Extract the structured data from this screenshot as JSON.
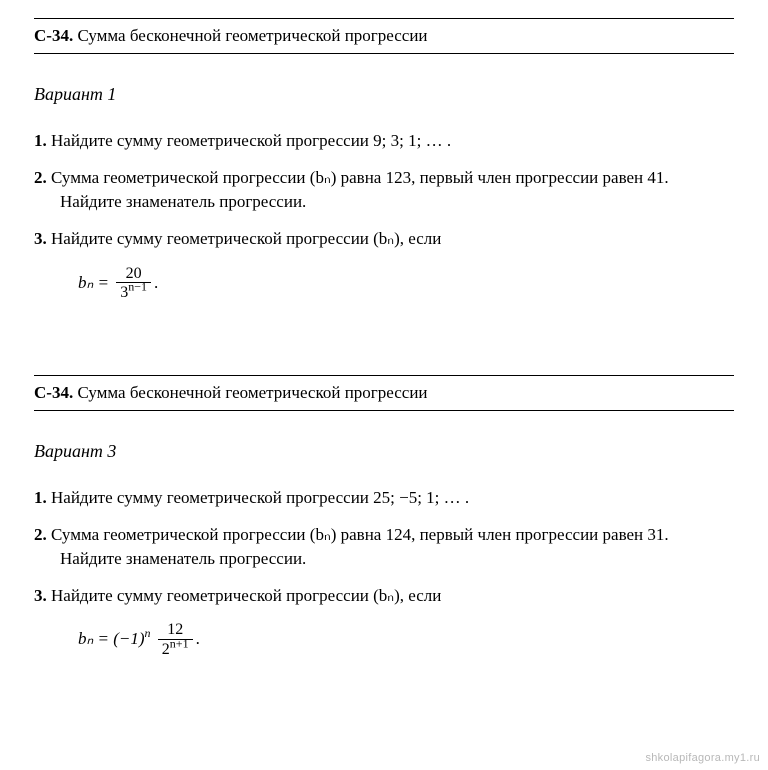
{
  "sections": [
    {
      "code": "С-34.",
      "title": "Сумма бесконечной геометрической прогрессии",
      "variant": "Вариант 1",
      "problems": {
        "p1": {
          "num": "1.",
          "text": "Найдите сумму геометрической прогрессии 9; 3; 1; … ."
        },
        "p2": {
          "num": "2.",
          "text": "Сумма геометрической прогрессии (bₙ) равна 123, первый член прогрессии равен 41. Найдите знаменатель прогрессии."
        },
        "p3": {
          "num": "3.",
          "text": "Найдите сумму геометрической прогрессии (bₙ), если"
        }
      },
      "formula": {
        "lhs": "bₙ =",
        "frac_num": "20",
        "frac_den_base": "3",
        "frac_den_exp": "n−1",
        "tail": "."
      }
    },
    {
      "code": "С-34.",
      "title": "Сумма бесконечной геометрической прогрессии",
      "variant": "Вариант 3",
      "problems": {
        "p1": {
          "num": "1.",
          "text": "Найдите сумму геометрической прогрессии 25; −5; 1; … ."
        },
        "p2": {
          "num": "2.",
          "text": "Сумма геометрической прогрессии (bₙ) равна 124, первый член прогрессии равен 31. Найдите знаменатель прогрессии."
        },
        "p3": {
          "num": "3.",
          "text": "Найдите сумму геометрической прогрессии (bₙ), если"
        }
      },
      "formula": {
        "lhs_a": "bₙ = (−1)",
        "lhs_exp": "n",
        "frac_num": "12",
        "frac_den_base": "2",
        "frac_den_exp": "n+1",
        "tail": "."
      }
    }
  ],
  "watermark": "shkolapifagora.my1.ru"
}
